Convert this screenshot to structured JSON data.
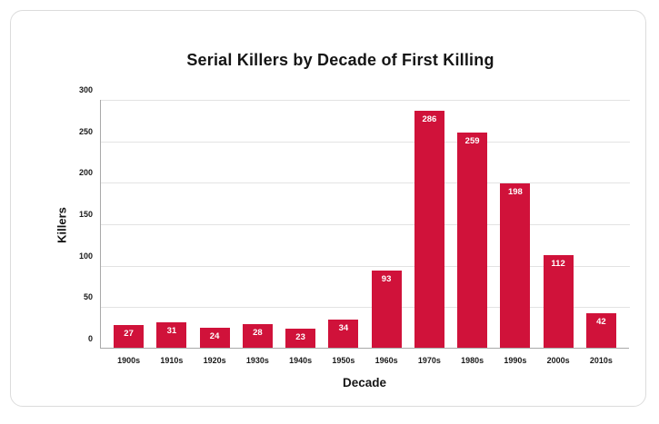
{
  "chart_data": {
    "type": "bar",
    "title": "Serial Killers by Decade of First Killing",
    "xlabel": "Decade",
    "ylabel": "Killers",
    "categories": [
      "1900s",
      "1910s",
      "1920s",
      "1930s",
      "1940s",
      "1950s",
      "1960s",
      "1970s",
      "1980s",
      "1990s",
      "2000s",
      "2010s"
    ],
    "values": [
      27,
      31,
      24,
      28,
      23,
      34,
      93,
      286,
      259,
      198,
      112,
      42
    ],
    "ylim": [
      0,
      300
    ],
    "yticks": [
      0,
      50,
      100,
      150,
      200,
      250,
      300
    ],
    "grid": true,
    "legend": "none",
    "value_labels": [
      "27",
      "31",
      "24",
      "28",
      "23",
      "34",
      "93",
      "286",
      "259",
      "198",
      "112",
      "42"
    ],
    "colors": {
      "bar": "#D0123A",
      "value_label_text": "#FFFFFF",
      "text": "#151515",
      "gridline": "#E3E3E3",
      "axis_line": "#A9A9A9",
      "card_border": "#DCDCDC",
      "background": "#FFFFFF"
    }
  }
}
